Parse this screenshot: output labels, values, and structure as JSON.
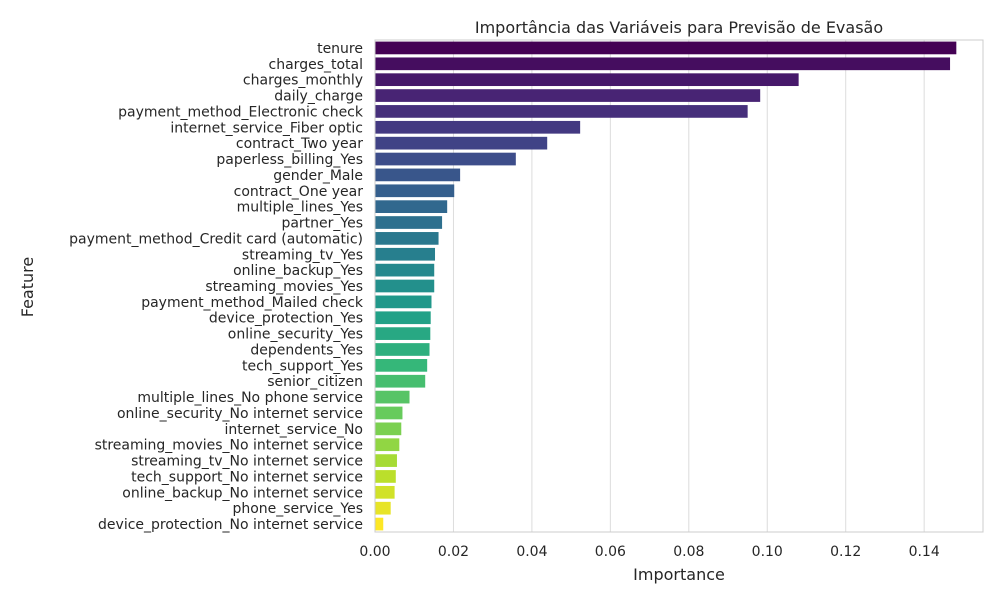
{
  "chart_data": {
    "type": "bar",
    "orientation": "horizontal",
    "title": "Importância das Variáveis para Previsão de Evasão",
    "xlabel": "Importance",
    "ylabel": "Feature",
    "xlim": [
      0,
      0.155
    ],
    "xticks": [
      0.0,
      0.02,
      0.04,
      0.06,
      0.08,
      0.1,
      0.12,
      0.14
    ],
    "xtick_labels": [
      "0.00",
      "0.02",
      "0.04",
      "0.06",
      "0.08",
      "0.10",
      "0.12",
      "0.14"
    ],
    "grid": "vertical",
    "colormap": "viridis",
    "categories": [
      "tenure",
      "charges_total",
      "charges_monthly",
      "daily_charge",
      "payment_method_Electronic check",
      "internet_service_Fiber optic",
      "contract_Two year",
      "paperless_billing_Yes",
      "gender_Male",
      "contract_One year",
      "multiple_lines_Yes",
      "partner_Yes",
      "payment_method_Credit card (automatic)",
      "streaming_tv_Yes",
      "online_backup_Yes",
      "streaming_movies_Yes",
      "payment_method_Mailed check",
      "device_protection_Yes",
      "online_security_Yes",
      "dependents_Yes",
      "tech_support_Yes",
      "senior_citizen",
      "multiple_lines_No phone service",
      "online_security_No internet service",
      "internet_service_No",
      "streaming_movies_No internet service",
      "streaming_tv_No internet service",
      "tech_support_No internet service",
      "online_backup_No internet service",
      "phone_service_Yes",
      "device_protection_No internet service"
    ],
    "values": [
      0.1482,
      0.1466,
      0.108,
      0.0982,
      0.095,
      0.0523,
      0.0439,
      0.0359,
      0.0217,
      0.0202,
      0.0184,
      0.0171,
      0.0162,
      0.0153,
      0.0151,
      0.0151,
      0.0144,
      0.0142,
      0.0141,
      0.0139,
      0.0133,
      0.0128,
      0.0088,
      0.007,
      0.0067,
      0.0062,
      0.0056,
      0.0053,
      0.005,
      0.004,
      0.0021
    ]
  }
}
